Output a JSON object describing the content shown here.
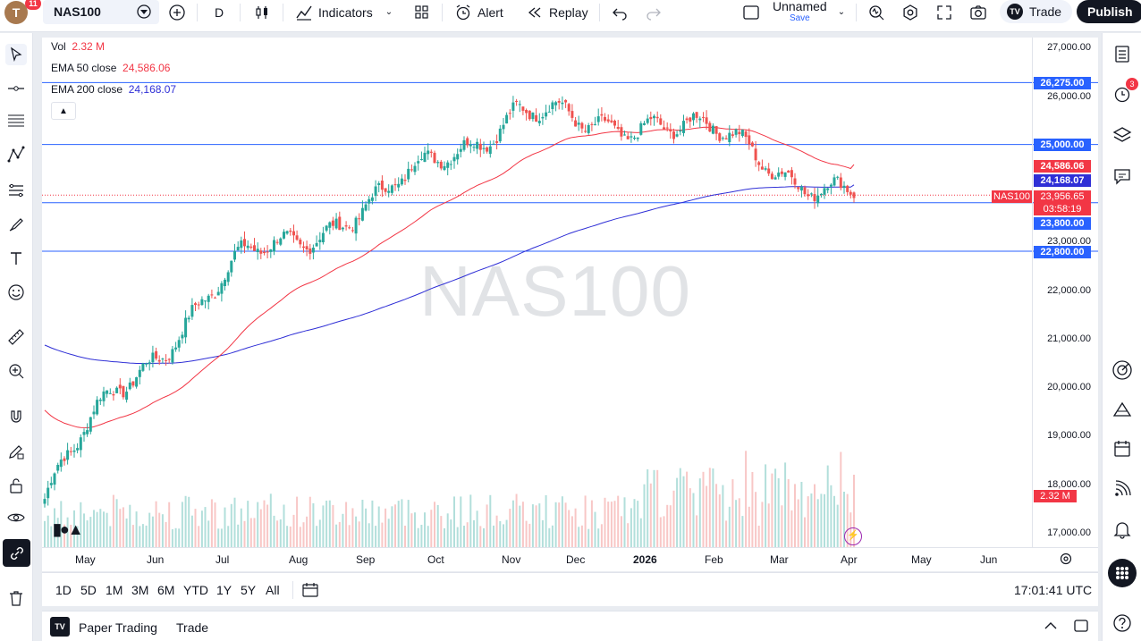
{
  "toolbar": {
    "avatar_letter": "T",
    "avatar_badge": "11",
    "symbol": "NAS100",
    "interval": "D",
    "indicators_label": "Indicators",
    "alert_label": "Alert",
    "replay_label": "Replay",
    "layout_name": "Unnamed",
    "layout_save": "Save",
    "trade_label": "Trade",
    "publish_label": "Publish"
  },
  "legend": {
    "vol_label": "Vol",
    "vol_value": "2.32 M",
    "ema50_label": "EMA 50 close",
    "ema50_value": "24,586.06",
    "ema200_label": "EMA 200 close",
    "ema200_value": "24,168.07"
  },
  "watermark": "NAS100",
  "price_axis": [
    "27,000.00",
    "26,000.00",
    "25,000.00",
    "24,000.00",
    "23,000.00",
    "22,000.00",
    "21,000.00",
    "20,000.00",
    "19,000.00",
    "18,000.00",
    "17,000.00"
  ],
  "price_labels": {
    "h1": "26,275.00",
    "h2": "25,000.00",
    "ema50": "24,586.06",
    "ema200": "24,168.07",
    "last": "23,956.65",
    "countdown": "03:58:19",
    "h3": "23,800.00",
    "h4": "22,800.00",
    "vol": "2.32 M",
    "symbol_tag": "NAS100"
  },
  "time_axis": [
    "May",
    "Jun",
    "Jul",
    "Aug",
    "Sep",
    "Oct",
    "Nov",
    "Dec",
    "2026",
    "Feb",
    "Mar",
    "Apr",
    "May",
    "Jun"
  ],
  "ranges": [
    "1D",
    "5D",
    "1M",
    "3M",
    "6M",
    "YTD",
    "1Y",
    "5Y",
    "All"
  ],
  "clock": "17:01:41 UTC",
  "bottom_panel": {
    "paper_trading": "Paper Trading",
    "trade": "Trade"
  },
  "right_badge": "3",
  "colors": {
    "up": "#26a69a",
    "down": "#ef5350",
    "ema50": "#f23645",
    "ema200": "#2f2fd6",
    "hline": "#2962ff"
  },
  "chart_data": {
    "type": "candlestick",
    "symbol": "NAS100",
    "x": [
      "Apr",
      "May",
      "Jun",
      "Jul",
      "Aug",
      "Sep",
      "Oct",
      "Nov",
      "Dec",
      "2026",
      "Feb",
      "Mar",
      "Apr"
    ],
    "close_approx": [
      17700,
      19800,
      21300,
      22600,
      23300,
      23800,
      24900,
      25700,
      25300,
      25600,
      25100,
      24500,
      23956.65
    ],
    "ema50_last": 24586.06,
    "ema200_last": 24168.07,
    "horizontal_lines": [
      26275,
      25000,
      23800,
      22800
    ],
    "ylim": [
      17000,
      27000
    ],
    "last_price": 23956.65
  }
}
